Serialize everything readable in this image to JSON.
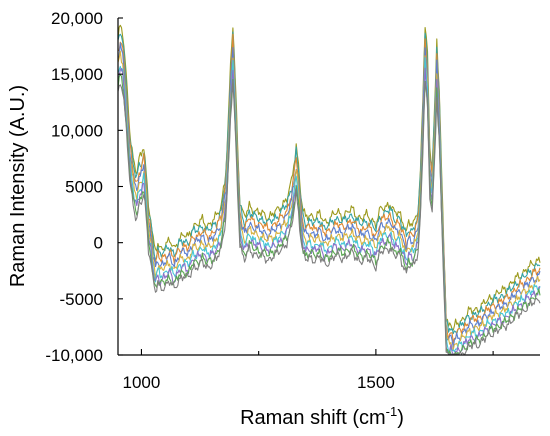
{
  "chart_data": {
    "type": "line",
    "title": "",
    "xlabel": "Raman shift (cm",
    "xlabel_superscript": "-1",
    "xlabel_suffix": ")",
    "ylabel": "Raman Intensity (A.U.)",
    "xlim": [
      950,
      1850
    ],
    "ylim": [
      -10000,
      20000
    ],
    "x_ticks": [
      {
        "value": 1000,
        "label": "1000"
      },
      {
        "value": 1500,
        "label": "1500"
      }
    ],
    "x_minor_ticks": [
      1250,
      1750
    ],
    "y_ticks": [
      {
        "value": 20000,
        "label": "20,000"
      },
      {
        "value": 15000,
        "label": "15,000"
      },
      {
        "value": 10000,
        "label": "10,000"
      },
      {
        "value": 5000,
        "label": "5000"
      },
      {
        "value": 0,
        "label": "0"
      },
      {
        "value": -5000,
        "label": "-5000"
      },
      {
        "value": -10000,
        "label": "-10,000"
      }
    ],
    "grid": false,
    "legend": "none",
    "series_colors": [
      "#9c9a1e",
      "#33a3a8",
      "#e08a33",
      "#5b7fd0",
      "#d8b240",
      "#45c6d6",
      "#8c70c8",
      "#5aa852",
      "#7e7e7e"
    ],
    "base_profile": {
      "x": [
        950,
        955,
        960,
        965,
        970,
        975,
        980,
        985,
        990,
        995,
        1000,
        1005,
        1010,
        1015,
        1020,
        1025,
        1030,
        1035,
        1040,
        1050,
        1060,
        1070,
        1080,
        1090,
        1100,
        1110,
        1120,
        1130,
        1140,
        1150,
        1160,
        1170,
        1180,
        1185,
        1190,
        1195,
        1200,
        1205,
        1210,
        1215,
        1220,
        1230,
        1240,
        1250,
        1260,
        1270,
        1280,
        1290,
        1300,
        1310,
        1320,
        1325,
        1330,
        1335,
        1340,
        1345,
        1350,
        1360,
        1370,
        1380,
        1390,
        1400,
        1410,
        1420,
        1430,
        1440,
        1450,
        1460,
        1470,
        1480,
        1490,
        1500,
        1510,
        1520,
        1530,
        1540,
        1550,
        1555,
        1560,
        1565,
        1570,
        1580,
        1590,
        1595,
        1600,
        1605,
        1610,
        1615,
        1620,
        1625,
        1630,
        1635,
        1640,
        1645,
        1650,
        1655,
        1660,
        1665,
        1670,
        1680,
        1690,
        1700,
        1720,
        1740,
        1760,
        1780,
        1800,
        1820,
        1840,
        1850
      ],
      "y": [
        16500,
        17500,
        16800,
        14500,
        11500,
        8500,
        6800,
        5500,
        4900,
        6000,
        6200,
        7200,
        5000,
        2000,
        1000,
        -1000,
        -2000,
        -1200,
        -1700,
        -1400,
        -1000,
        -1700,
        -800,
        -500,
        -700,
        300,
        400,
        800,
        300,
        600,
        1100,
        2000,
        5000,
        9000,
        14000,
        17500,
        13000,
        7500,
        2500,
        1500,
        1000,
        2000,
        1600,
        1400,
        1300,
        1000,
        1300,
        1600,
        2100,
        2600,
        4000,
        5500,
        7200,
        5500,
        3000,
        1500,
        1000,
        1200,
        1000,
        1300,
        600,
        800,
        1300,
        1400,
        1100,
        1500,
        1700,
        1100,
        900,
        1200,
        900,
        400,
        1700,
        1900,
        2200,
        1300,
        1500,
        800,
        500,
        -300,
        500,
        400,
        1800,
        5000,
        11000,
        17500,
        15000,
        7000,
        5500,
        10000,
        16200,
        12000,
        5000,
        -1500,
        -7500,
        -8300,
        -8000,
        -8700,
        -8200,
        -7900,
        -7500,
        -7000,
        -6800,
        -6000,
        -5500,
        -5000,
        -4200,
        -3500,
        -2800,
        -2500
      ]
    },
    "series": [
      {
        "offset": 1200,
        "scale": 1.04
      },
      {
        "offset": 700,
        "scale": 1.03
      },
      {
        "offset": 200,
        "scale": 1.02
      },
      {
        "offset": -300,
        "scale": 1.01
      },
      {
        "offset": -800,
        "scale": 1.0
      },
      {
        "offset": -1300,
        "scale": 0.99
      },
      {
        "offset": -1700,
        "scale": 0.98
      },
      {
        "offset": -2100,
        "scale": 0.97
      },
      {
        "offset": -2500,
        "scale": 0.96
      }
    ]
  }
}
